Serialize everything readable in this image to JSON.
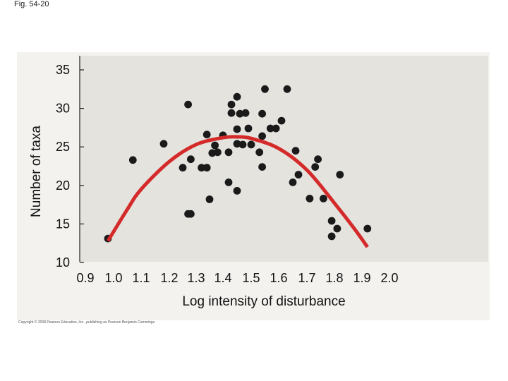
{
  "figure": {
    "label": "Fig. 54-20",
    "copyright": "Copyright © 2008 Pearson Education, Inc., publishing as Pearson Benjamin Cummings."
  },
  "colors": {
    "panel_background": "#f3f2ef",
    "plot_background": "#e4e3de",
    "points": "#1a1a1a",
    "curve": "#d42a2a",
    "axis": "#222222"
  },
  "chart_data": {
    "type": "scatter",
    "title": "",
    "xlabel": "Log intensity of disturbance",
    "ylabel": "Number of taxa",
    "xlim": [
      0.9,
      2.0
    ],
    "ylim": [
      10,
      35
    ],
    "xticks": [
      0.9,
      1.0,
      1.1,
      1.2,
      1.3,
      1.4,
      1.5,
      1.6,
      1.7,
      1.8,
      1.9,
      2.0
    ],
    "xtick_labels": [
      "0.9",
      "1.0",
      "1.1",
      "1.2",
      "1.3",
      "1.4",
      "1.5",
      "1.6",
      "1.7",
      "1.8",
      "1.9",
      "2.0"
    ],
    "yticks": [
      10,
      15,
      20,
      25,
      30,
      35
    ],
    "ytick_labels": [
      "10",
      "15",
      "20",
      "25",
      "30",
      "35"
    ],
    "grid": false,
    "legend": "none",
    "series": [
      {
        "points": [
          [
            0.98,
            13.1
          ],
          [
            1.07,
            23.3
          ],
          [
            1.18,
            25.4
          ],
          [
            1.25,
            22.3
          ],
          [
            1.27,
            30.5
          ],
          [
            1.27,
            16.3
          ],
          [
            1.28,
            16.3
          ],
          [
            1.28,
            23.4
          ],
          [
            1.32,
            22.3
          ],
          [
            1.34,
            22.3
          ],
          [
            1.34,
            26.6
          ],
          [
            1.35,
            18.2
          ],
          [
            1.36,
            24.2
          ],
          [
            1.37,
            25.2
          ],
          [
            1.38,
            24.3
          ],
          [
            1.4,
            26.5
          ],
          [
            1.42,
            24.3
          ],
          [
            1.42,
            20.4
          ],
          [
            1.43,
            29.4
          ],
          [
            1.43,
            30.5
          ],
          [
            1.45,
            31.5
          ],
          [
            1.45,
            27.3
          ],
          [
            1.45,
            25.4
          ],
          [
            1.45,
            19.3
          ],
          [
            1.46,
            29.3
          ],
          [
            1.47,
            25.3
          ],
          [
            1.48,
            29.4
          ],
          [
            1.49,
            27.4
          ],
          [
            1.5,
            25.3
          ],
          [
            1.53,
            24.3
          ],
          [
            1.54,
            29.3
          ],
          [
            1.54,
            26.4
          ],
          [
            1.54,
            22.4
          ],
          [
            1.55,
            32.5
          ],
          [
            1.57,
            27.4
          ],
          [
            1.59,
            27.4
          ],
          [
            1.61,
            28.4
          ],
          [
            1.63,
            32.5
          ],
          [
            1.65,
            20.4
          ],
          [
            1.66,
            24.5
          ],
          [
            1.67,
            21.4
          ],
          [
            1.71,
            18.3
          ],
          [
            1.73,
            22.4
          ],
          [
            1.74,
            23.4
          ],
          [
            1.76,
            18.3
          ],
          [
            1.79,
            15.4
          ],
          [
            1.79,
            13.4
          ],
          [
            1.81,
            14.4
          ],
          [
            1.82,
            21.4
          ],
          [
            1.92,
            14.4
          ]
        ]
      },
      {
        "type": "line",
        "points": [
          [
            0.98,
            12.8
          ],
          [
            1.05,
            16.9
          ],
          [
            1.1,
            19.5
          ],
          [
            1.2,
            23.1
          ],
          [
            1.3,
            25.3
          ],
          [
            1.4,
            26.2
          ],
          [
            1.45,
            26.3
          ],
          [
            1.5,
            26.1
          ],
          [
            1.6,
            24.8
          ],
          [
            1.7,
            22.0
          ],
          [
            1.8,
            17.7
          ],
          [
            1.87,
            14.5
          ],
          [
            1.92,
            12.0
          ]
        ]
      }
    ]
  }
}
